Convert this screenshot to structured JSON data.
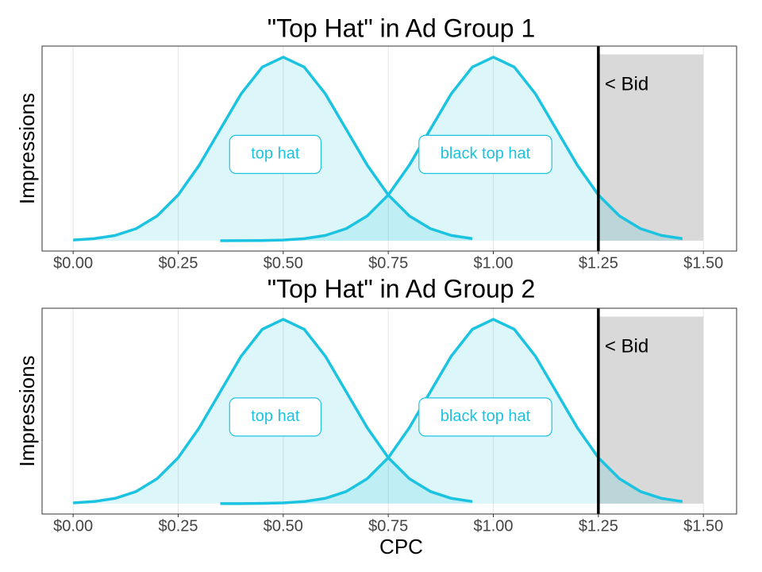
{
  "chart_data": [
    {
      "type": "area",
      "title": "\"Top Hat\" in Ad Group 1",
      "ylabel": "Impressions",
      "xlim": [
        -0.074,
        1.579
      ],
      "ylim": [
        -0.15,
        2.82
      ],
      "xticks": [
        {
          "value": 0,
          "label": "$0.00"
        },
        {
          "value": 0.25,
          "label": "$0.25"
        },
        {
          "value": 0.5,
          "label": "$0.50"
        },
        {
          "value": 0.75,
          "label": "$0.75"
        },
        {
          "value": 1,
          "label": "$1.00"
        },
        {
          "value": 1.25,
          "label": "$1.25"
        },
        {
          "value": 1.5,
          "label": "$1.50"
        }
      ],
      "grid": true,
      "series": [
        {
          "name": "top hat",
          "color": "#1bc3e0",
          "x": [
            0,
            0.05,
            0.1,
            0.15,
            0.2,
            0.25,
            0.3,
            0.35,
            0.4,
            0.45,
            0.5,
            0.55,
            0.6,
            0.65,
            0.7,
            0.75,
            0.8,
            0.85,
            0.9,
            0.95
          ],
          "values": [
            0.01,
            0.03,
            0.076,
            0.175,
            0.36,
            0.663,
            1.094,
            1.613,
            2.13,
            2.516,
            2.66,
            2.516,
            2.13,
            1.613,
            1.094,
            0.663,
            0.36,
            0.175,
            0.076,
            0.03
          ]
        },
        {
          "name": "black top hat",
          "color": "#1bc3e0",
          "x": [
            0.35,
            0.4,
            0.45,
            0.5,
            0.55,
            0.6,
            0.65,
            0.7,
            0.75,
            0.8,
            0.85,
            0.9,
            0.95,
            1,
            1.05,
            1.1,
            1.15,
            1.2,
            1.25,
            1.3,
            1.35,
            1.4,
            1.45
          ],
          "values": [
            0.0,
            0.001,
            0.003,
            0.01,
            0.03,
            0.076,
            0.175,
            0.36,
            0.663,
            1.094,
            1.613,
            2.13,
            2.516,
            2.66,
            2.516,
            2.13,
            1.613,
            1.094,
            0.663,
            0.36,
            0.175,
            0.076,
            0.03
          ]
        }
      ],
      "bid": {
        "value": 1.25,
        "label": "< Bid"
      },
      "bid_region": {
        "xlim": [
          1.25,
          1.5
        ],
        "ylim": [
          0,
          2.7
        ]
      }
    },
    {
      "type": "area",
      "title": "\"Top Hat\" in Ad Group 2",
      "ylabel": "Impressions",
      "xlabel": "CPC",
      "xlim": [
        -0.074,
        1.579
      ],
      "ylim": [
        -0.15,
        2.82
      ],
      "xticks": [
        {
          "value": 0,
          "label": "$0.00"
        },
        {
          "value": 0.25,
          "label": "$0.25"
        },
        {
          "value": 0.5,
          "label": "$0.50"
        },
        {
          "value": 0.75,
          "label": "$0.75"
        },
        {
          "value": 1,
          "label": "$1.00"
        },
        {
          "value": 1.25,
          "label": "$1.25"
        },
        {
          "value": 1.5,
          "label": "$1.50"
        }
      ],
      "grid": true,
      "series": [
        {
          "name": "top hat",
          "color": "#1bc3e0",
          "x": [
            0,
            0.05,
            0.1,
            0.15,
            0.2,
            0.25,
            0.3,
            0.35,
            0.4,
            0.45,
            0.5,
            0.55,
            0.6,
            0.65,
            0.7,
            0.75,
            0.8,
            0.85,
            0.9,
            0.95
          ],
          "values": [
            0.01,
            0.03,
            0.076,
            0.175,
            0.36,
            0.663,
            1.094,
            1.613,
            2.13,
            2.516,
            2.66,
            2.516,
            2.13,
            1.613,
            1.094,
            0.663,
            0.36,
            0.175,
            0.076,
            0.03
          ]
        },
        {
          "name": "black top hat",
          "color": "#1bc3e0",
          "x": [
            0.35,
            0.4,
            0.45,
            0.5,
            0.55,
            0.6,
            0.65,
            0.7,
            0.75,
            0.8,
            0.85,
            0.9,
            0.95,
            1,
            1.05,
            1.1,
            1.15,
            1.2,
            1.25,
            1.3,
            1.35,
            1.4,
            1.45
          ],
          "values": [
            0.0,
            0.001,
            0.003,
            0.01,
            0.03,
            0.076,
            0.175,
            0.36,
            0.663,
            1.094,
            1.613,
            2.13,
            2.516,
            2.66,
            2.516,
            2.13,
            1.613,
            1.094,
            0.663,
            0.36,
            0.175,
            0.076,
            0.03
          ]
        }
      ],
      "bid": {
        "value": 1.25,
        "label": "< Bid"
      },
      "bid_region": {
        "xlim": [
          1.25,
          1.5
        ],
        "ylim": [
          0,
          2.7
        ]
      }
    }
  ]
}
